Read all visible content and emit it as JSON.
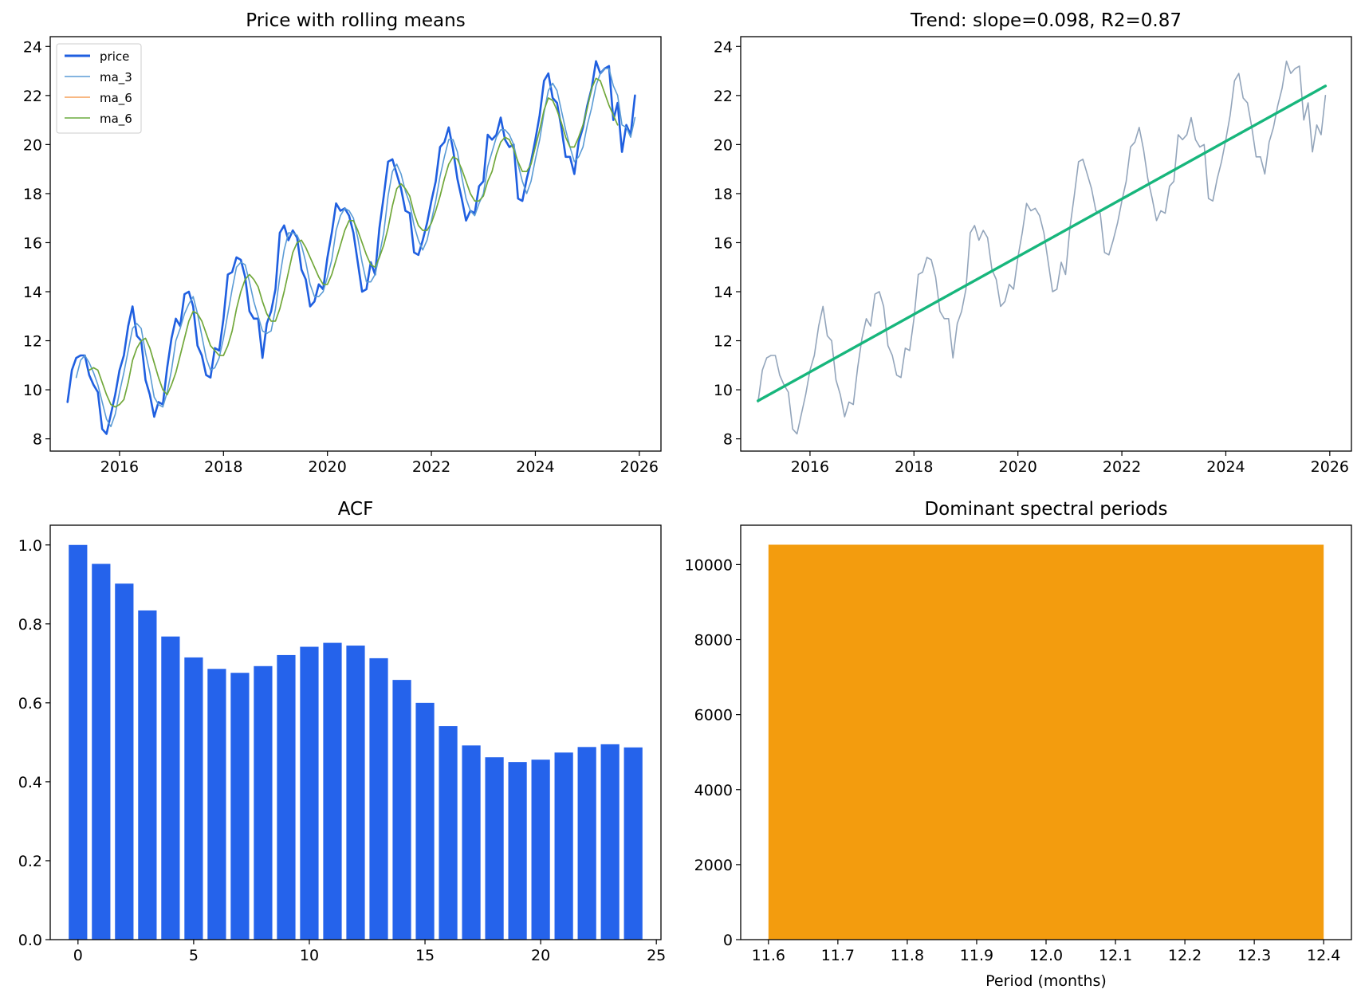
{
  "figure": {
    "colors": {
      "price": "#1f5fe0",
      "ma_3": "#5b9bd5",
      "ma_6_hidden": "#f5a15a",
      "ma_6": "#6aab3e",
      "trend_line": "#17b67c",
      "trend_series": "#93a5bb",
      "acf_bars": "#2563eb",
      "period_bar": "#f39c0e"
    }
  },
  "chart_data": [
    {
      "type": "line",
      "title": "Price with rolling means",
      "xlabel": "",
      "ylabel": "",
      "x_axis": "date",
      "x_start": "2015-01",
      "x_step": "1 month",
      "xlim": [
        "2014-09",
        "2026-06"
      ],
      "ylim": [
        7.5,
        24.4
      ],
      "xticks": [
        "2016",
        "2018",
        "2020",
        "2022",
        "2024",
        "2026"
      ],
      "yticks": [
        8,
        10,
        12,
        14,
        16,
        18,
        20,
        22,
        24
      ],
      "grid": false,
      "legend": "upper-left",
      "legend_entries": [
        "price",
        "ma_3",
        "ma_6",
        "ma_6"
      ],
      "series": [
        {
          "name": "price",
          "values": [
            9.5,
            10.8,
            11.3,
            11.4,
            11.4,
            10.6,
            10.2,
            9.9,
            8.4,
            8.2,
            9.0,
            9.8,
            10.8,
            11.4,
            12.6,
            13.4,
            12.2,
            12.0,
            10.4,
            9.8,
            8.9,
            9.5,
            9.4,
            10.9,
            12.1,
            12.9,
            12.6,
            13.9,
            14.0,
            13.4,
            11.8,
            11.4,
            10.6,
            10.5,
            11.7,
            11.6,
            12.9,
            14.7,
            14.8,
            15.4,
            15.3,
            14.6,
            13.2,
            12.9,
            12.9,
            11.3,
            12.7,
            13.2,
            14.1,
            16.4,
            16.7,
            16.1,
            16.5,
            16.2,
            14.9,
            14.5,
            13.4,
            13.6,
            14.3,
            14.1,
            15.4,
            16.4,
            17.6,
            17.3,
            17.4,
            17.1,
            16.4,
            15.2,
            14.0,
            14.1,
            15.2,
            14.7,
            16.6,
            17.9,
            19.3,
            19.4,
            18.8,
            18.2,
            17.3,
            17.2,
            15.6,
            15.5,
            16.1,
            16.8,
            17.7,
            18.5,
            19.9,
            20.1,
            20.7,
            19.8,
            18.6,
            17.8,
            16.9,
            17.3,
            17.2,
            18.3,
            18.5,
            20.4,
            20.2,
            20.4,
            21.1,
            20.2,
            19.9,
            20.0,
            17.8,
            17.7,
            18.6,
            19.3,
            20.2,
            21.2,
            22.6,
            22.9,
            21.9,
            21.7,
            20.7,
            19.5,
            19.5,
            18.8,
            20.1,
            20.7,
            21.6,
            22.3,
            23.4,
            22.9,
            23.1,
            23.2,
            21.0,
            21.7,
            19.7,
            20.8,
            20.4,
            22.0
          ]
        },
        {
          "name": "ma_3",
          "values": [
            null,
            null,
            10.5,
            11.2,
            11.4,
            11.1,
            10.7,
            10.2,
            9.5,
            8.8,
            8.5,
            9.0,
            9.9,
            10.7,
            11.6,
            12.5,
            12.7,
            12.5,
            11.5,
            10.7,
            9.7,
            9.4,
            9.3,
            9.9,
            10.8,
            12.0,
            12.5,
            13.1,
            13.5,
            13.8,
            13.1,
            12.2,
            11.3,
            10.8,
            10.9,
            11.3,
            12.1,
            13.1,
            14.1,
            15.0,
            15.2,
            15.1,
            14.4,
            13.6,
            13.0,
            12.4,
            12.3,
            12.4,
            13.3,
            14.6,
            15.7,
            16.4,
            16.4,
            16.3,
            15.9,
            15.2,
            14.3,
            13.8,
            13.8,
            14.0,
            14.6,
            15.3,
            16.5,
            17.1,
            17.4,
            17.3,
            17.0,
            16.2,
            15.2,
            14.4,
            14.4,
            14.7,
            15.5,
            16.4,
            17.9,
            18.9,
            19.2,
            18.8,
            18.1,
            17.6,
            16.7,
            16.1,
            15.7,
            16.1,
            16.9,
            17.7,
            18.7,
            19.5,
            20.2,
            20.2,
            19.7,
            18.7,
            17.8,
            17.3,
            17.1,
            17.6,
            18.0,
            19.1,
            19.7,
            20.3,
            20.6,
            20.6,
            20.4,
            20.0,
            19.2,
            18.5,
            18.0,
            18.5,
            19.4,
            20.2,
            21.3,
            22.2,
            22.5,
            22.2,
            21.4,
            20.6,
            19.9,
            19.3,
            19.5,
            19.9,
            20.8,
            21.5,
            22.4,
            22.9,
            23.1,
            23.1,
            22.4,
            22.0,
            20.8,
            20.7,
            20.3,
            21.1
          ]
        },
        {
          "name": "ma_6",
          "values": [
            null,
            null,
            null,
            null,
            null,
            10.8,
            10.9,
            10.8,
            10.3,
            9.8,
            9.4,
            9.3,
            9.4,
            9.6,
            10.3,
            11.2,
            11.7,
            12.0,
            12.1,
            11.7,
            11.1,
            10.5,
            10.0,
            9.8,
            10.2,
            10.7,
            11.4,
            12.1,
            12.8,
            13.2,
            13.1,
            12.8,
            12.3,
            11.8,
            11.6,
            11.4,
            11.4,
            11.8,
            12.4,
            13.3,
            14.0,
            14.5,
            14.7,
            14.5,
            14.2,
            13.6,
            13.1,
            12.8,
            12.8,
            13.3,
            14.0,
            14.8,
            15.6,
            16.0,
            16.1,
            15.8,
            15.4,
            15.0,
            14.6,
            14.3,
            14.3,
            14.7,
            15.3,
            15.9,
            16.5,
            16.9,
            16.9,
            16.5,
            16.0,
            15.5,
            15.1,
            15.0,
            15.4,
            15.9,
            16.6,
            17.5,
            18.2,
            18.4,
            18.2,
            17.9,
            17.2,
            16.7,
            16.5,
            16.5,
            16.8,
            17.3,
            17.9,
            18.6,
            19.2,
            19.5,
            19.4,
            19.0,
            18.5,
            18.0,
            17.7,
            17.7,
            17.9,
            18.5,
            18.9,
            19.6,
            20.1,
            20.3,
            20.2,
            19.8,
            19.3,
            18.9,
            18.9,
            19.2,
            19.9,
            20.6,
            21.4,
            21.9,
            21.8,
            21.4,
            20.9,
            20.3,
            19.9,
            19.9,
            20.3,
            20.8,
            21.5,
            22.3,
            22.7,
            22.6,
            22.1,
            21.6,
            21.2,
            20.8
          ]
        }
      ]
    },
    {
      "type": "line",
      "title": "Trend: slope=0.098, R2=0.87",
      "xlabel": "",
      "ylabel": "",
      "x_axis": "date",
      "x_start": "2015-01",
      "x_step": "1 month",
      "xlim": [
        "2014-09",
        "2026-06"
      ],
      "ylim": [
        7.5,
        24.4
      ],
      "xticks": [
        "2016",
        "2018",
        "2020",
        "2022",
        "2024",
        "2026"
      ],
      "yticks": [
        8,
        10,
        12,
        14,
        16,
        18,
        20,
        22,
        24
      ],
      "grid": false,
      "trend": {
        "slope": 0.098,
        "intercept": 9.55,
        "r2": 0.87
      },
      "series_ref": "price"
    },
    {
      "type": "bar",
      "title": "ACF",
      "xlabel": "",
      "ylabel": "",
      "categories": [
        0,
        1,
        2,
        3,
        4,
        5,
        6,
        7,
        8,
        9,
        10,
        11,
        12,
        13,
        14,
        15,
        16,
        17,
        18,
        19,
        20,
        21,
        22,
        23,
        24
      ],
      "values": [
        1.0,
        0.952,
        0.902,
        0.834,
        0.768,
        0.715,
        0.686,
        0.676,
        0.693,
        0.721,
        0.742,
        0.752,
        0.745,
        0.713,
        0.658,
        0.6,
        0.541,
        0.492,
        0.462,
        0.45,
        0.456,
        0.474,
        0.488,
        0.495,
        0.487
      ],
      "xlim": [
        -1.2,
        25.2
      ],
      "ylim": [
        0,
        1.05
      ],
      "xticks": [
        0,
        5,
        10,
        15,
        20,
        25
      ],
      "yticks": [
        "0.0",
        "0.2",
        "0.4",
        "0.6",
        "0.8",
        "1.0"
      ],
      "grid": false
    },
    {
      "type": "bar",
      "title": "Dominant spectral periods",
      "xlabel": "Period (months)",
      "ylabel": "",
      "categories": [
        12.0
      ],
      "values": [
        10530
      ],
      "bar_range": [
        11.6,
        12.4
      ],
      "xlim": [
        11.56,
        12.44
      ],
      "ylim": [
        0,
        11050
      ],
      "xticks": [
        "11.6",
        "11.7",
        "11.8",
        "11.9",
        "12.0",
        "12.1",
        "12.2",
        "12.3",
        "12.4"
      ],
      "yticks": [
        0,
        2000,
        4000,
        6000,
        8000,
        10000
      ],
      "grid": false
    }
  ]
}
